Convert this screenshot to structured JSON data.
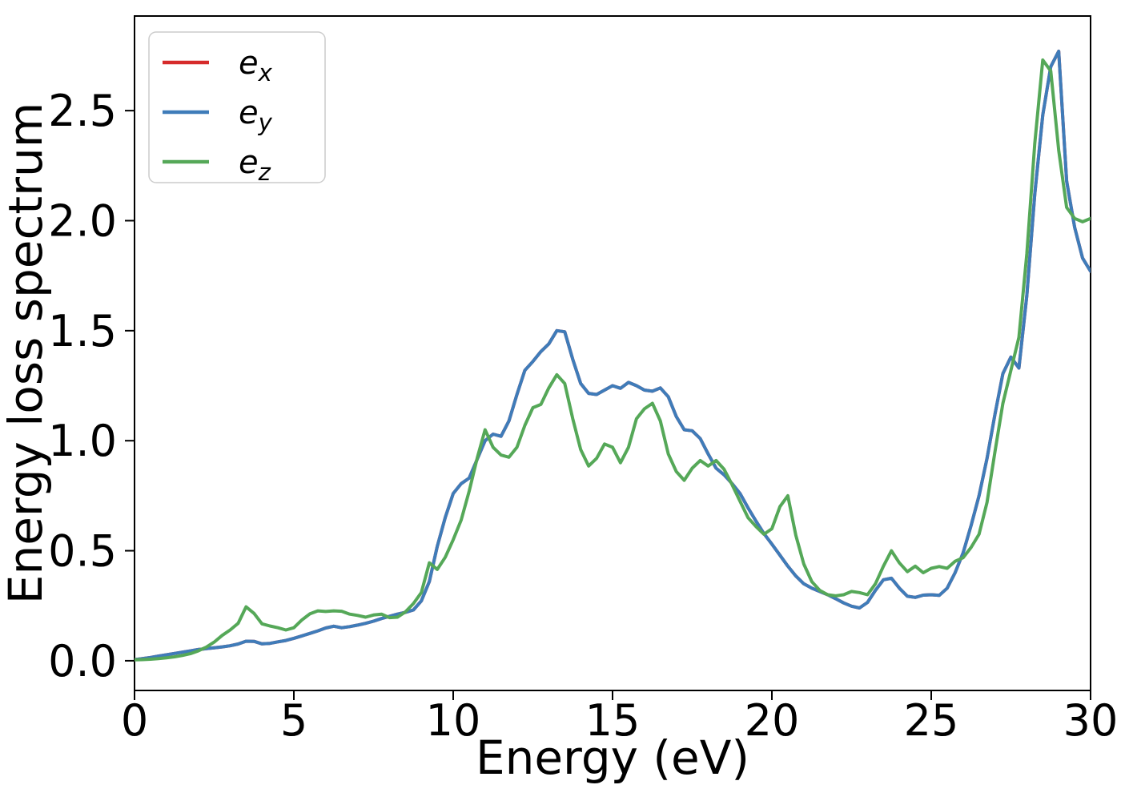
{
  "figure": {
    "background": "#ffffff",
    "frame_color": "#000000"
  },
  "chart_data": {
    "type": "line",
    "title": "",
    "xlabel": "Energy (eV)",
    "ylabel": "Energy loss spectrum",
    "xlim": [
      0,
      30
    ],
    "ylim": [
      -0.135,
      2.93
    ],
    "grid": false,
    "x_ticks": [
      0,
      5,
      10,
      15,
      20,
      25,
      30
    ],
    "x_tick_labels": [
      "0",
      "5",
      "10",
      "15",
      "20",
      "25",
      "30"
    ],
    "y_ticks": [
      0.0,
      0.5,
      1.0,
      1.5,
      2.0,
      2.5
    ],
    "y_tick_labels": [
      "0.0",
      "0.5",
      "1.0",
      "1.5",
      "2.0",
      "2.5"
    ],
    "legend": {
      "position": "upper left"
    },
    "x": [
      0,
      0.25,
      0.5,
      0.75,
      1,
      1.25,
      1.5,
      1.75,
      2,
      2.25,
      2.5,
      2.75,
      3,
      3.25,
      3.5,
      3.75,
      4,
      4.25,
      4.5,
      4.75,
      5,
      5.25,
      5.5,
      5.75,
      6,
      6.25,
      6.5,
      6.75,
      7,
      7.25,
      7.5,
      7.75,
      8,
      8.25,
      8.5,
      8.75,
      9,
      9.25,
      9.5,
      9.75,
      10,
      10.25,
      10.5,
      10.75,
      11,
      11.25,
      11.5,
      11.75,
      12,
      12.25,
      12.5,
      12.75,
      13,
      13.25,
      13.5,
      13.75,
      14,
      14.25,
      14.5,
      14.75,
      15,
      15.25,
      15.5,
      15.75,
      16,
      16.25,
      16.5,
      16.75,
      17,
      17.25,
      17.5,
      17.75,
      18,
      18.25,
      18.5,
      18.75,
      19,
      19.25,
      19.5,
      19.75,
      20,
      20.25,
      20.5,
      20.75,
      21,
      21.25,
      21.5,
      21.75,
      22,
      22.25,
      22.5,
      22.75,
      23,
      23.25,
      23.5,
      23.75,
      24,
      24.25,
      24.5,
      24.75,
      25,
      25.25,
      25.5,
      25.75,
      26,
      26.25,
      26.5,
      26.75,
      27,
      27.25,
      27.5,
      27.75,
      28,
      28.25,
      28.5,
      28.75,
      29,
      29.25,
      29.5,
      29.75,
      30
    ],
    "series": [
      {
        "name": "e_x",
        "label_main": "e",
        "label_sub": "x",
        "color": "#d62b2b",
        "values": [
          0.005,
          0.01,
          0.015,
          0.021,
          0.027,
          0.033,
          0.039,
          0.045,
          0.051,
          0.055,
          0.059,
          0.063,
          0.068,
          0.076,
          0.089,
          0.088,
          0.077,
          0.079,
          0.086,
          0.092,
          0.102,
          0.113,
          0.124,
          0.136,
          0.149,
          0.157,
          0.15,
          0.155,
          0.162,
          0.17,
          0.18,
          0.192,
          0.202,
          0.212,
          0.22,
          0.231,
          0.272,
          0.36,
          0.52,
          0.65,
          0.76,
          0.805,
          0.83,
          0.915,
          1.0,
          1.03,
          1.02,
          1.09,
          1.21,
          1.32,
          1.36,
          1.405,
          1.44,
          1.5,
          1.495,
          1.37,
          1.26,
          1.215,
          1.21,
          1.23,
          1.25,
          1.238,
          1.265,
          1.25,
          1.23,
          1.225,
          1.24,
          1.2,
          1.11,
          1.05,
          1.045,
          1.01,
          0.94,
          0.875,
          0.845,
          0.805,
          0.76,
          0.695,
          0.635,
          0.578,
          0.53,
          0.48,
          0.43,
          0.385,
          0.35,
          0.33,
          0.315,
          0.3,
          0.282,
          0.263,
          0.248,
          0.24,
          0.265,
          0.32,
          0.368,
          0.375,
          0.33,
          0.293,
          0.288,
          0.298,
          0.3,
          0.297,
          0.33,
          0.4,
          0.49,
          0.615,
          0.75,
          0.92,
          1.12,
          1.305,
          1.38,
          1.33,
          1.66,
          2.12,
          2.48,
          2.7,
          2.77,
          2.18,
          1.97,
          1.83,
          1.77
        ]
      },
      {
        "name": "e_y",
        "label_main": "e",
        "label_sub": "y",
        "color": "#3f7cb9",
        "values": [
          0.005,
          0.01,
          0.015,
          0.021,
          0.027,
          0.033,
          0.039,
          0.045,
          0.051,
          0.055,
          0.059,
          0.063,
          0.068,
          0.076,
          0.089,
          0.088,
          0.077,
          0.079,
          0.086,
          0.092,
          0.102,
          0.113,
          0.124,
          0.136,
          0.149,
          0.157,
          0.15,
          0.155,
          0.162,
          0.17,
          0.18,
          0.192,
          0.202,
          0.212,
          0.22,
          0.231,
          0.272,
          0.36,
          0.52,
          0.65,
          0.76,
          0.805,
          0.83,
          0.915,
          1.0,
          1.03,
          1.02,
          1.09,
          1.21,
          1.32,
          1.36,
          1.405,
          1.44,
          1.5,
          1.495,
          1.37,
          1.26,
          1.215,
          1.21,
          1.23,
          1.25,
          1.238,
          1.265,
          1.25,
          1.23,
          1.225,
          1.24,
          1.2,
          1.11,
          1.05,
          1.045,
          1.01,
          0.94,
          0.875,
          0.845,
          0.805,
          0.76,
          0.695,
          0.635,
          0.578,
          0.53,
          0.48,
          0.43,
          0.385,
          0.35,
          0.33,
          0.315,
          0.3,
          0.282,
          0.263,
          0.248,
          0.24,
          0.265,
          0.32,
          0.368,
          0.375,
          0.33,
          0.293,
          0.288,
          0.298,
          0.3,
          0.297,
          0.33,
          0.4,
          0.49,
          0.615,
          0.75,
          0.92,
          1.12,
          1.305,
          1.38,
          1.33,
          1.66,
          2.12,
          2.48,
          2.7,
          2.77,
          2.18,
          1.97,
          1.83,
          1.77
        ]
      },
      {
        "name": "e_z",
        "label_main": "e",
        "label_sub": "z",
        "color": "#55a858",
        "values": [
          0.004,
          0.005,
          0.007,
          0.01,
          0.013,
          0.018,
          0.024,
          0.032,
          0.045,
          0.062,
          0.085,
          0.115,
          0.14,
          0.17,
          0.245,
          0.215,
          0.168,
          0.158,
          0.15,
          0.14,
          0.15,
          0.185,
          0.213,
          0.227,
          0.224,
          0.227,
          0.225,
          0.212,
          0.206,
          0.198,
          0.208,
          0.212,
          0.196,
          0.198,
          0.222,
          0.26,
          0.31,
          0.445,
          0.415,
          0.47,
          0.55,
          0.64,
          0.77,
          0.92,
          1.05,
          0.97,
          0.935,
          0.925,
          0.97,
          1.07,
          1.15,
          1.165,
          1.24,
          1.3,
          1.26,
          1.1,
          0.96,
          0.885,
          0.92,
          0.985,
          0.97,
          0.9,
          0.97,
          1.1,
          1.145,
          1.17,
          1.09,
          0.94,
          0.86,
          0.82,
          0.875,
          0.91,
          0.885,
          0.91,
          0.87,
          0.8,
          0.725,
          0.65,
          0.61,
          0.575,
          0.6,
          0.7,
          0.75,
          0.57,
          0.44,
          0.36,
          0.32,
          0.3,
          0.295,
          0.3,
          0.315,
          0.31,
          0.3,
          0.35,
          0.43,
          0.5,
          0.445,
          0.405,
          0.43,
          0.4,
          0.42,
          0.428,
          0.42,
          0.452,
          0.468,
          0.515,
          0.575,
          0.72,
          0.95,
          1.17,
          1.32,
          1.47,
          1.85,
          2.35,
          2.73,
          2.68,
          2.32,
          2.06,
          2.01,
          1.995,
          2.01
        ]
      }
    ]
  }
}
